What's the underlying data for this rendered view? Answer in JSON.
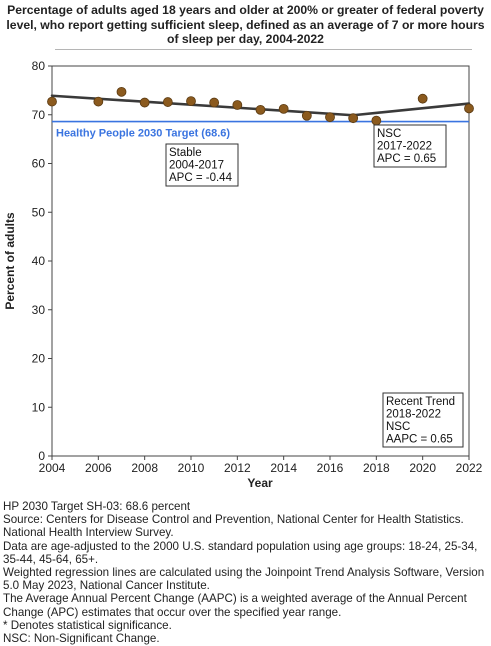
{
  "title": "Percentage of adults aged 18 years and older at 200% or greater of federal poverty level, who report getting sufficient sleep, defined as an average of 7 or more hours of sleep per day, 2004-2022",
  "chart_data": {
    "type": "scatter",
    "xlabel": "Year",
    "ylabel": "Percent of adults",
    "xlim": [
      2004,
      2022
    ],
    "ylim": [
      0,
      80
    ],
    "x_ticks": [
      2004,
      2006,
      2008,
      2010,
      2012,
      2014,
      2016,
      2018,
      2020,
      2022
    ],
    "y_ticks": [
      0,
      10,
      20,
      30,
      40,
      50,
      60,
      70,
      80
    ],
    "grid": false,
    "points": [
      {
        "x": 2004,
        "y": 72.7
      },
      {
        "x": 2006,
        "y": 72.7
      },
      {
        "x": 2007,
        "y": 74.7
      },
      {
        "x": 2008,
        "y": 72.5
      },
      {
        "x": 2009,
        "y": 72.6
      },
      {
        "x": 2010,
        "y": 72.8
      },
      {
        "x": 2011,
        "y": 72.5
      },
      {
        "x": 2012,
        "y": 72.0
      },
      {
        "x": 2013,
        "y": 71.0
      },
      {
        "x": 2014,
        "y": 71.2
      },
      {
        "x": 2015,
        "y": 69.8
      },
      {
        "x": 2016,
        "y": 69.5
      },
      {
        "x": 2017,
        "y": 69.3
      },
      {
        "x": 2018,
        "y": 68.8
      },
      {
        "x": 2020,
        "y": 73.3
      },
      {
        "x": 2022,
        "y": 71.3
      }
    ],
    "trend_segments": [
      {
        "x": [
          2004,
          2017
        ],
        "y": [
          73.9,
          69.9
        ]
      },
      {
        "x": [
          2017,
          2022
        ],
        "y": [
          69.9,
          72.3
        ]
      }
    ],
    "target": {
      "value": 68.6,
      "label": "Healthy People 2030 Target (68.6)"
    },
    "annotations": [
      {
        "lines": [
          "Stable",
          "2004-2017",
          "APC = -0.44"
        ]
      },
      {
        "lines": [
          "NSC",
          "2017-2022",
          "APC =  0.65"
        ]
      },
      {
        "lines": [
          "Recent Trend",
          "2018-2022",
          "NSC",
          "AAPC =  0.65"
        ]
      }
    ],
    "colors": {
      "point": "#8B5A1E",
      "point_stroke": "#5a3a12",
      "trend": "#3a3a3a",
      "target": "#3a74e0"
    }
  },
  "notes": [
    "HP 2030 Target SH-03: 68.6 percent",
    "Source: Centers for Disease Control and Prevention, National Center for Health Statistics. National Health Interview Survey.",
    "Data are age-adjusted to the 2000 U.S. standard population using age groups: 18-24, 25-34, 35-44, 45-64, 65+.",
    "Weighted regression lines are calculated using the Joinpoint Trend Analysis Software, Version 5.0 May 2023, National Cancer Institute.",
    "The Average Annual Percent Change (AAPC) is a weighted average of the Annual Percent Change (APC) estimates that occur over the specified year range.",
    "* Denotes statistical significance.",
    "NSC: Non-Significant Change."
  ]
}
